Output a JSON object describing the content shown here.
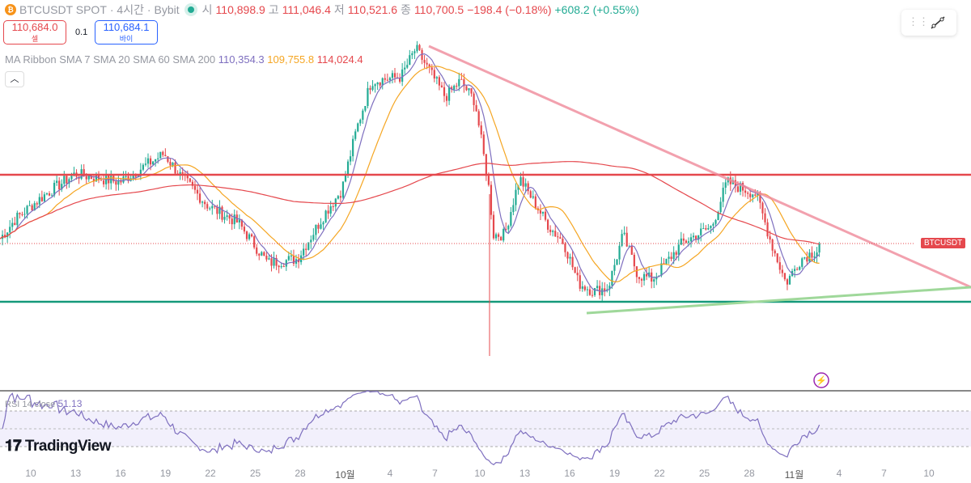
{
  "header": {
    "symbol": "BTCUSDT SPOT",
    "interval": "· 4시간 ·",
    "exchange": "Bybit",
    "open_label": "시",
    "open": "110,898.9",
    "high_label": "고",
    "high": "111,046.4",
    "low_label": "저",
    "low": "110,521.6",
    "close_label": "종",
    "close": "110,700.5",
    "change": "−198.4 (−0.18%)",
    "extra_change": "+608.2 (+0.55%)"
  },
  "order": {
    "sell_price": "110,684.0",
    "sell_label": "셀",
    "spread": "0.1",
    "buy_price": "110,684.1",
    "buy_label": "바이"
  },
  "ma": {
    "label": "MA Ribbon SMA 7 SMA 20 SMA 60 SMA 200",
    "v1": "110,354.3",
    "v2": "109,755.8",
    "v3": "114,024.4"
  },
  "price_tag": "BTCUSDT",
  "rsi": {
    "label": "RSI 14 close",
    "value": "51.13"
  },
  "brand": "TradingView",
  "x_ticks": [
    "10",
    "13",
    "16",
    "19",
    "22",
    "25",
    "28",
    "10월",
    "4",
    "7",
    "10",
    "13",
    "16",
    "19",
    "22",
    "25",
    "28",
    "11월",
    "4",
    "7",
    "10"
  ],
  "colors": {
    "up": "#22ab94",
    "down": "#e5484d",
    "sma7": "#7e6fbf",
    "sma20": "#f5a623",
    "sma200": "#e5484d",
    "resistance": "#e5484d",
    "support": "#14997a"
  },
  "chart_data": {
    "type": "candlestick",
    "last_price": 110684,
    "levels": {
      "resistance": 115750,
      "support": 106390
    },
    "price_path": [
      [
        "09-08",
        111040
      ],
      [
        "09-09",
        112530
      ],
      [
        "09-11",
        114320
      ],
      [
        "09-13",
        115810
      ],
      [
        "09-16",
        115210
      ],
      [
        "09-19",
        117300
      ],
      [
        "09-20",
        115810
      ],
      [
        "09-22",
        113430
      ],
      [
        "09-24",
        112230
      ],
      [
        "09-26",
        109250
      ],
      [
        "09-28",
        109550
      ],
      [
        "09-30",
        113130
      ],
      [
        "10-01",
        114620
      ],
      [
        "10-02",
        119090
      ],
      [
        "10-03",
        122660
      ],
      [
        "10-05",
        122960
      ],
      [
        "10-06",
        125050
      ],
      [
        "10-08",
        121470
      ],
      [
        "10-09",
        122660
      ],
      [
        "10-10",
        121170
      ],
      [
        "10-11",
        114320
      ],
      [
        "10-11",
        111340
      ],
      [
        "10-12",
        111340
      ],
      [
        "10-13",
        115510
      ],
      [
        "10-15",
        111940
      ],
      [
        "10-16",
        110740
      ],
      [
        "10-17",
        107760
      ],
      [
        "10-18",
        107170
      ],
      [
        "10-19",
        107470
      ],
      [
        "10-20",
        111340
      ],
      [
        "10-21",
        108360
      ],
      [
        "10-22",
        108060
      ],
      [
        "10-24",
        110740
      ],
      [
        "10-26",
        111940
      ],
      [
        "10-27",
        115210
      ],
      [
        "10-29",
        114320
      ],
      [
        "10-30",
        110740
      ],
      [
        "10-31",
        107760
      ],
      [
        "11-01",
        109550
      ],
      [
        "11-02",
        110150
      ],
      [
        "11-03",
        110684
      ]
    ]
  }
}
